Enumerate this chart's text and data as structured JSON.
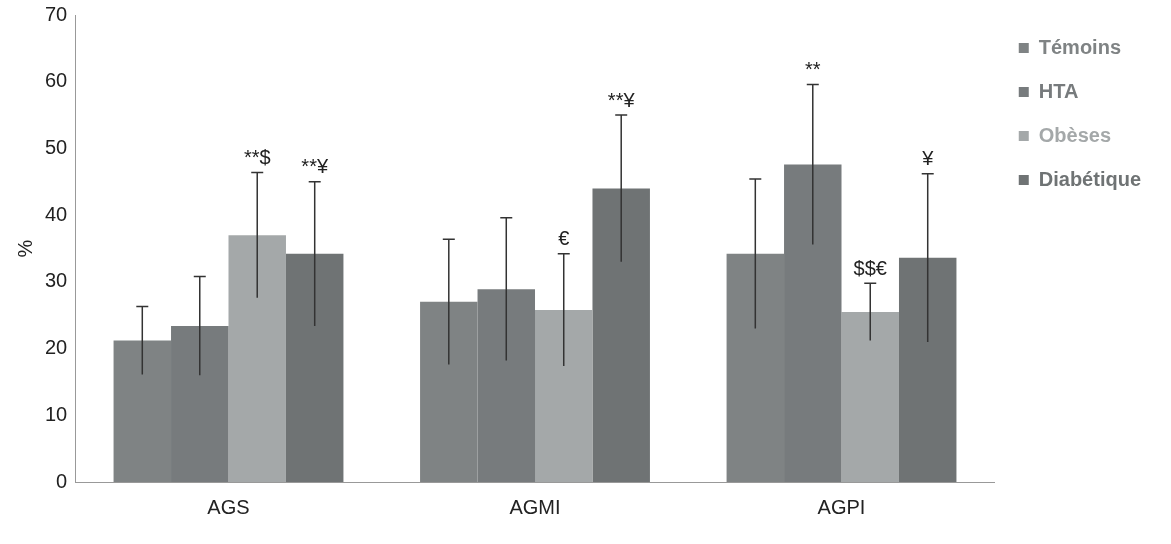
{
  "chart_data": {
    "type": "bar",
    "ylabel": "%",
    "categories": [
      "AGS",
      "AGMI",
      "AGPI"
    ],
    "series": [
      {
        "name": "Témoins",
        "color": "#7f8384",
        "values": [
          21.2,
          27.0,
          34.2
        ],
        "errors": [
          5.1,
          9.4,
          11.2
        ]
      },
      {
        "name": "HTA",
        "color": "#777b7d",
        "values": [
          23.4,
          28.9,
          47.6
        ],
        "errors": [
          7.4,
          10.7,
          12.0
        ]
      },
      {
        "name": "Obèses",
        "color": "#a4a8a9",
        "values": [
          37.0,
          25.8,
          25.5
        ],
        "errors": [
          9.4,
          8.4,
          4.3
        ]
      },
      {
        "name": "Diabétique",
        "color": "#6f7374",
        "values": [
          34.2,
          44.0,
          33.6
        ],
        "errors": [
          10.8,
          11.0,
          12.6
        ]
      }
    ],
    "ylim": [
      0,
      70
    ],
    "yticks": [
      0,
      10,
      20,
      30,
      40,
      50,
      60,
      70
    ],
    "grid": false,
    "legend": "top right",
    "annotations": [
      "**$",
      "**¥",
      "€",
      "**¥",
      "**",
      "$$€",
      "¥"
    ]
  }
}
